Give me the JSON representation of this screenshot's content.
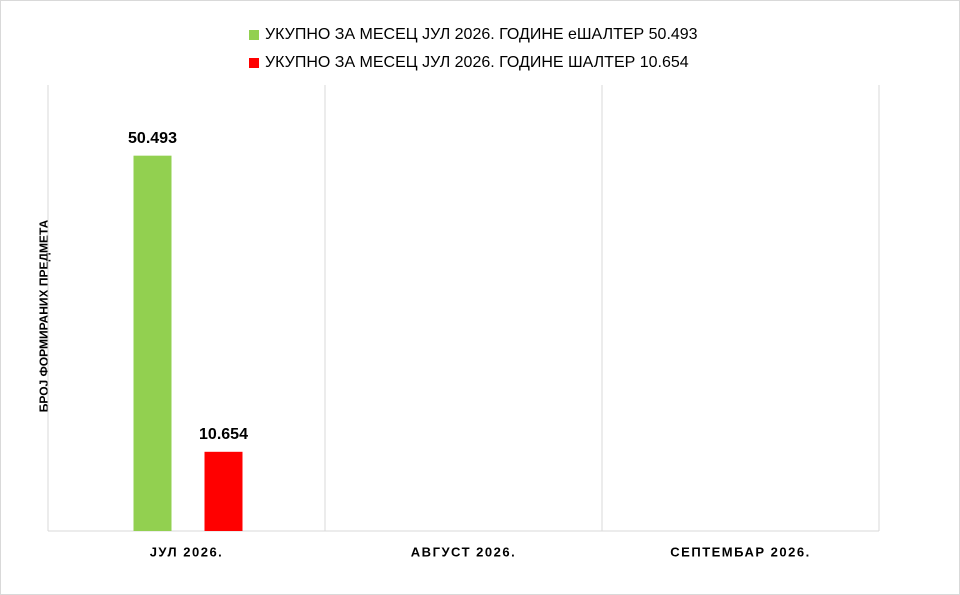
{
  "chart_data": {
    "type": "bar",
    "y_label": "БРОЈ ФОРМИРАНИХ ПРЕДМЕТА",
    "categories": [
      "ЈУЛ 2026.",
      "АВГУСТ 2026.",
      "СЕПТЕМБАР 2026."
    ],
    "series": [
      {
        "name": "УКУПНО ЗА МЕСЕЦ ЈУЛ 2026. ГОДИНЕ еШАЛТЕР 50.493",
        "color": "#92d050",
        "values": [
          50493,
          null,
          null
        ],
        "value_labels": [
          "50.493",
          null,
          null
        ]
      },
      {
        "name": "УКУПНО ЗА МЕСЕЦ ЈУЛ 2026. ГОДИНЕ ШАЛТЕР 10.654",
        "color": "#ff0000",
        "values": [
          10654,
          null,
          null
        ],
        "value_labels": [
          "10.654",
          null,
          null
        ]
      }
    ],
    "ylim": [
      0,
      60000
    ],
    "legend": "top"
  }
}
